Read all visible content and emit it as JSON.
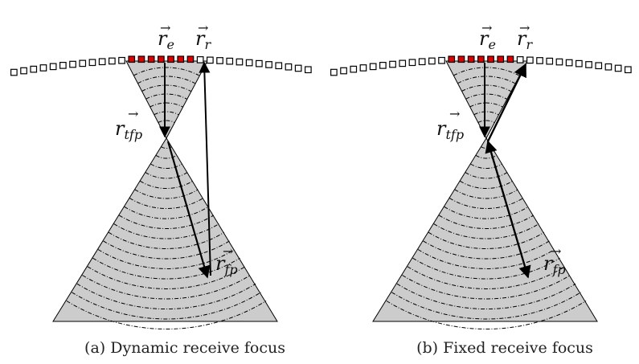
{
  "panels": [
    {
      "id": "a",
      "caption": "(a)  Dynamic receive focus",
      "mode": "dynamic",
      "labels": {
        "r_e": "r_e",
        "r_r": "r_r",
        "r_tfp": "r_tfp",
        "r_fp": "r_fp"
      }
    },
    {
      "id": "b",
      "caption": "(b)  Fixed receive focus",
      "mode": "fixed",
      "labels": {
        "r_e": "r_e",
        "r_r": "r_r",
        "r_tfp": "r_tfp",
        "r_fp": "r_fp"
      }
    }
  ],
  "colors": {
    "active_element": "#e00000",
    "inactive_element": "#ffffff",
    "cone_fill": "#cccccc",
    "stroke": "#000000"
  },
  "transducer": {
    "active_elements_count": 8
  }
}
